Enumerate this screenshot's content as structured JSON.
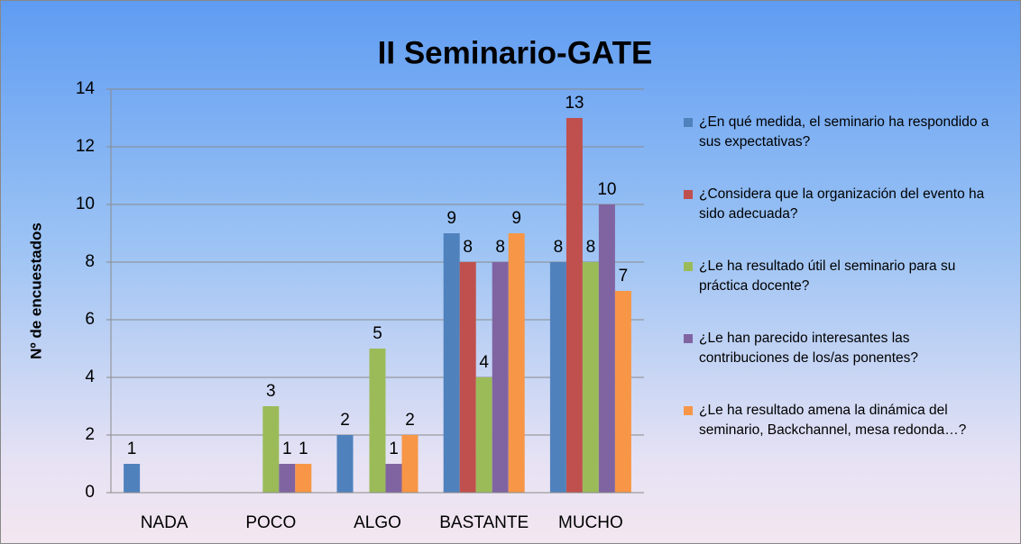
{
  "chart_data": {
    "type": "bar",
    "title": "II Seminario-GATE",
    "y_label": "Nº de encuestados",
    "categories": [
      "NADA",
      "POCO",
      "ALGO",
      "BASTANTE",
      "MUCHO"
    ],
    "series": [
      {
        "name": "¿En qué medida, el seminario ha respondido a sus expectativas?",
        "color": "#4f81bd",
        "values": [
          1,
          null,
          2,
          9,
          8
        ]
      },
      {
        "name": "¿Considera que la organización del evento ha sido adecuada?",
        "color": "#c0504d",
        "values": [
          null,
          null,
          null,
          8,
          13
        ]
      },
      {
        "name": "¿Le ha resultado útil el seminario para su práctica docente?",
        "color": "#9bbb59",
        "values": [
          null,
          3,
          5,
          4,
          8
        ]
      },
      {
        "name": "¿Le han parecido interesantes las contribuciones de los/as ponentes?",
        "color": "#8064a2",
        "values": [
          null,
          1,
          1,
          8,
          10
        ]
      },
      {
        "name": "¿Le ha resultado amena la dinámica del seminario,  Backchannel, mesa redonda…?",
        "color": "#f79646",
        "values": [
          null,
          1,
          2,
          9,
          7
        ]
      }
    ],
    "ylim": [
      0,
      14
    ],
    "yticks": [
      0,
      2,
      4,
      6,
      8,
      10,
      12,
      14
    ],
    "grid": true,
    "legend": "right"
  }
}
